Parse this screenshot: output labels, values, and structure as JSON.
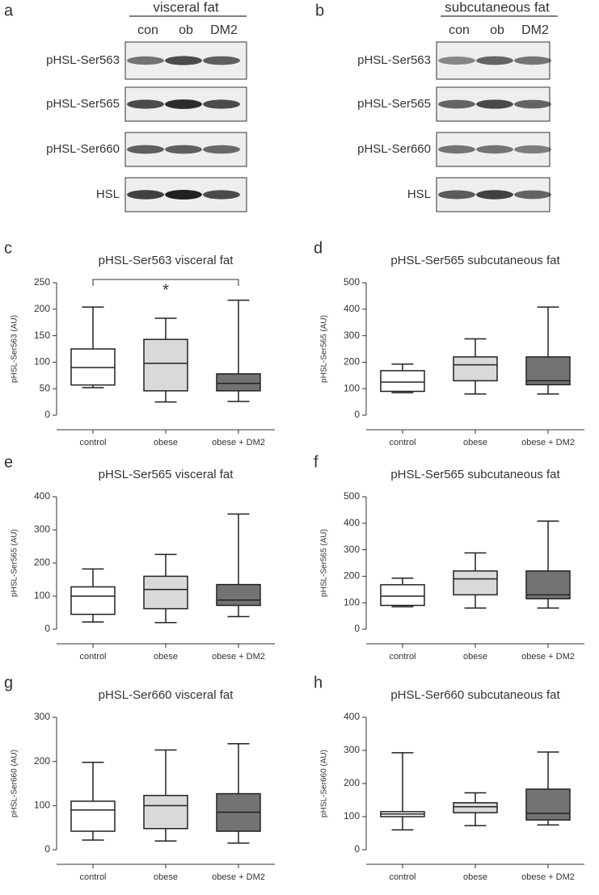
{
  "blots": [
    {
      "label": "a",
      "title": "visceral fat",
      "lanes": [
        "con",
        "ob",
        "DM2"
      ],
      "rows": [
        "pHSL-Ser563",
        "pHSL-Ser565",
        "pHSL-Ser660",
        "HSL"
      ]
    },
    {
      "label": "b",
      "title": "subcutaneous fat",
      "lanes": [
        "con",
        "ob",
        "DM2"
      ],
      "rows": [
        "pHSL-Ser563",
        "pHSL-Ser565",
        "pHSL-Ser660",
        "HSL"
      ]
    }
  ],
  "chart_data": [
    {
      "type": "box",
      "label": "c",
      "title": "pHSL-Ser563 visceral fat",
      "y_label": "pHSL-Ser563 (AU)",
      "annotation": "*",
      "categories": [
        "control",
        "obese",
        "obese + DM2"
      ],
      "colors": [
        "#ffffff",
        "#d9d9d9",
        "#737373"
      ],
      "min": [
        52,
        25,
        26
      ],
      "q1": [
        57,
        46,
        46
      ],
      "median": [
        90,
        98,
        60
      ],
      "q3": [
        125,
        143,
        78
      ],
      "max": [
        204,
        183,
        217
      ],
      "ylim": [
        0,
        250
      ],
      "yticks": [
        0,
        50,
        100,
        150,
        200,
        250
      ]
    },
    {
      "type": "box",
      "label": "d",
      "title": "pHSL-Ser565 subcutaneous fat",
      "y_label": "pHSL-Ser565 (AU)",
      "categories": [
        "control",
        "obese",
        "obese + DM2"
      ],
      "colors": [
        "#ffffff",
        "#d9d9d9",
        "#737373"
      ],
      "min": [
        85,
        80,
        80
      ],
      "q1": [
        90,
        130,
        115
      ],
      "median": [
        125,
        190,
        130
      ],
      "q3": [
        168,
        220,
        220
      ],
      "max": [
        193,
        288,
        408
      ],
      "ylim": [
        0,
        500
      ],
      "yticks": [
        0,
        100,
        200,
        300,
        400,
        500
      ]
    },
    {
      "type": "box",
      "label": "e",
      "title": "pHSL-Ser565 visceral fat",
      "y_label": "pHSL-Ser565 (AU)",
      "categories": [
        "control",
        "obese",
        "obese + DM2"
      ],
      "colors": [
        "#ffffff",
        "#d9d9d9",
        "#737373"
      ],
      "min": [
        22,
        20,
        38
      ],
      "q1": [
        45,
        62,
        72
      ],
      "median": [
        100,
        120,
        88
      ],
      "q3": [
        128,
        160,
        135
      ],
      "max": [
        182,
        226,
        348
      ],
      "ylim": [
        0,
        400
      ],
      "yticks": [
        0,
        100,
        200,
        300,
        400
      ]
    },
    {
      "type": "box",
      "label": "f",
      "title": "pHSL-Ser565 subcutaneous fat",
      "y_label": "pHSL-Ser565 (AU)",
      "categories": [
        "control",
        "obese",
        "obese + DM2"
      ],
      "colors": [
        "#ffffff",
        "#d9d9d9",
        "#737373"
      ],
      "min": [
        85,
        80,
        80
      ],
      "q1": [
        90,
        130,
        115
      ],
      "median": [
        125,
        190,
        130
      ],
      "q3": [
        168,
        220,
        220
      ],
      "max": [
        193,
        288,
        408
      ],
      "ylim": [
        0,
        500
      ],
      "yticks": [
        0,
        100,
        200,
        300,
        400,
        500
      ]
    },
    {
      "type": "box",
      "label": "g",
      "title": "pHSL-Ser660 visceral fat",
      "y_label": "pHSL-Ser660 (AU)",
      "categories": [
        "control",
        "obese",
        "obese + DM2"
      ],
      "colors": [
        "#ffffff",
        "#d9d9d9",
        "#737373"
      ],
      "min": [
        22,
        20,
        15
      ],
      "q1": [
        42,
        48,
        42
      ],
      "median": [
        90,
        100,
        85
      ],
      "q3": [
        110,
        123,
        127
      ],
      "max": [
        198,
        226,
        240
      ],
      "ylim": [
        0,
        300
      ],
      "yticks": [
        0,
        100,
        200,
        300
      ]
    },
    {
      "type": "box",
      "label": "h",
      "title": "pHSL-Ser660 subcutaneous fat",
      "y_label": "pHSL-Ser660 (AU)",
      "categories": [
        "control",
        "obese",
        "obese + DM2"
      ],
      "colors": [
        "#ffffff",
        "#d9d9d9",
        "#737373"
      ],
      "min": [
        60,
        73,
        75
      ],
      "q1": [
        100,
        112,
        90
      ],
      "median": [
        108,
        130,
        110
      ],
      "q3": [
        115,
        142,
        183
      ],
      "max": [
        293,
        172,
        295
      ],
      "ylim": [
        0,
        400
      ],
      "yticks": [
        0,
        100,
        200,
        300,
        400
      ]
    }
  ]
}
